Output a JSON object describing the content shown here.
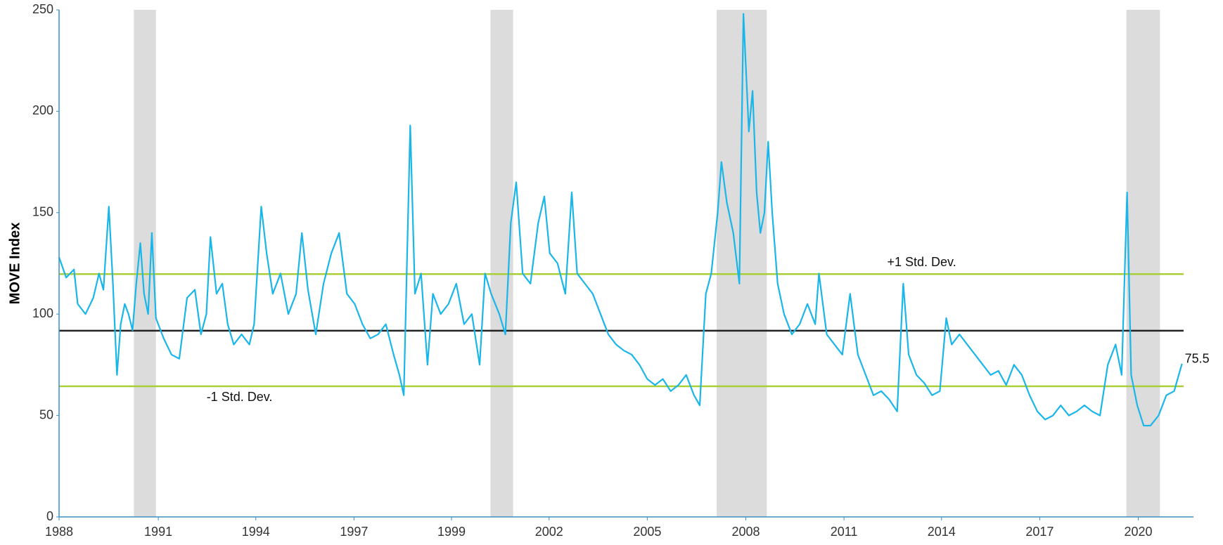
{
  "chart_data": {
    "type": "line",
    "y_label": "MOVE Index",
    "color": "#1ab6ea",
    "x": [
      1988.0,
      1988.21,
      1988.44,
      1988.55,
      1988.78,
      1989.01,
      1989.18,
      1989.31,
      1989.47,
      1989.59,
      1989.71,
      1989.82,
      1989.94,
      1990.05,
      1990.17,
      1990.28,
      1990.4,
      1990.51,
      1990.63,
      1990.74,
      1990.86,
      1991.09,
      1991.32,
      1991.55,
      1991.78,
      1992.01,
      1992.19,
      1992.35,
      1992.47,
      1992.65,
      1992.82,
      1992.98,
      1993.16,
      1993.39,
      1993.62,
      1993.76,
      1993.97,
      1994.13,
      1994.31,
      1994.54,
      1994.77,
      1995.0,
      1995.17,
      1995.35,
      1995.58,
      1995.81,
      1996.04,
      1996.27,
      1996.5,
      1996.73,
      1996.96,
      1997.19,
      1997.42,
      1997.65,
      1997.88,
      1998.05,
      1998.18,
      1998.37,
      1998.51,
      1998.69,
      1998.88,
      1999.04,
      1999.27,
      1999.5,
      1999.73,
      1999.96,
      2000.19,
      2000.42,
      2000.58,
      2000.76,
      2001.0,
      2001.18,
      2001.34,
      2001.5,
      2001.69,
      2001.92,
      2002.15,
      2002.33,
      2002.49,
      2002.72,
      2002.95,
      2003.14,
      2003.3,
      2003.53,
      2003.76,
      2003.99,
      2004.22,
      2004.45,
      2004.68,
      2004.91,
      2005.14,
      2005.37,
      2005.6,
      2005.83,
      2006.06,
      2006.29,
      2006.52,
      2006.75,
      2006.92,
      2007.1,
      2007.26,
      2007.45,
      2007.56,
      2007.72,
      2007.91,
      2008.09,
      2008.21,
      2008.37,
      2008.48,
      2008.6,
      2008.71,
      2008.83,
      2008.94,
      2009.06,
      2009.22,
      2009.41,
      2009.64,
      2009.87,
      2010.1,
      2010.33,
      2010.44,
      2010.67,
      2010.9,
      2011.13,
      2011.36,
      2011.59,
      2011.82,
      2012.05,
      2012.28,
      2012.51,
      2012.75,
      2012.93,
      2013.09,
      2013.32,
      2013.55,
      2013.78,
      2014.01,
      2014.2,
      2014.36,
      2014.59,
      2014.82,
      2015.05,
      2015.28,
      2015.51,
      2015.74,
      2015.97,
      2016.2,
      2016.43,
      2016.66,
      2016.89,
      2017.12,
      2017.35,
      2017.58,
      2017.82,
      2018.05,
      2018.28,
      2018.51,
      2018.74,
      2018.97,
      2019.2,
      2019.38,
      2019.54,
      2019.66,
      2019.84,
      2020.03,
      2020.23,
      2020.47,
      2020.7,
      2020.93,
      2021.16
    ],
    "values": [
      128,
      118,
      122,
      105,
      100,
      108,
      120,
      112,
      153,
      115,
      70,
      95,
      105,
      100,
      92,
      115,
      135,
      110,
      100,
      140,
      98,
      88,
      80,
      78,
      108,
      112,
      90,
      100,
      138,
      110,
      115,
      95,
      85,
      90,
      85,
      95,
      153,
      130,
      110,
      120,
      100,
      110,
      140,
      112,
      90,
      115,
      130,
      140,
      110,
      105,
      95,
      88,
      90,
      95,
      80,
      70,
      60,
      193,
      110,
      120,
      75,
      110,
      100,
      105,
      115,
      95,
      100,
      75,
      120,
      110,
      100,
      90,
      145,
      165,
      120,
      115,
      145,
      158,
      130,
      125,
      110,
      160,
      120,
      115,
      110,
      100,
      90,
      85,
      82,
      80,
      75,
      68,
      65,
      68,
      62,
      65,
      70,
      60,
      55,
      110,
      120,
      150,
      175,
      155,
      140,
      115,
      248,
      190,
      210,
      160,
      140,
      150,
      185,
      150,
      115,
      100,
      90,
      95,
      105,
      95,
      120,
      90,
      85,
      80,
      110,
      80,
      70,
      60,
      62,
      58,
      52,
      115,
      80,
      70,
      66,
      60,
      62,
      98,
      85,
      90,
      85,
      80,
      75,
      70,
      72,
      65,
      75,
      70,
      60,
      52,
      48,
      50,
      55,
      50,
      52,
      55,
      52,
      50,
      75,
      85,
      70,
      160,
      70,
      55,
      45,
      45,
      50,
      60,
      62,
      75.5
    ],
    "xlim": [
      1988,
      2021.5
    ],
    "xticks": [
      {
        "value": 1988,
        "label": "1988"
      },
      {
        "value": 1990.93,
        "label": "1991"
      },
      {
        "value": 1993.81,
        "label": "1994"
      },
      {
        "value": 1996.71,
        "label": "1997"
      },
      {
        "value": 1999.59,
        "label": "1999"
      },
      {
        "value": 2002.47,
        "label": "2002"
      },
      {
        "value": 2005.37,
        "label": "2005"
      },
      {
        "value": 2008.28,
        "label": "2008"
      },
      {
        "value": 2011.18,
        "label": "2011"
      },
      {
        "value": 2014.06,
        "label": "2014"
      },
      {
        "value": 2016.96,
        "label": "2017"
      },
      {
        "value": 2019.87,
        "label": "2020"
      }
    ],
    "ylim": [
      0,
      250
    ],
    "yticks": [
      0,
      50,
      100,
      150,
      200,
      250
    ],
    "grid": false,
    "shaded_ranges": [
      [
        1990.21,
        1990.86
      ],
      [
        2000.74,
        2001.41
      ],
      [
        2007.42,
        2008.9
      ],
      [
        2019.52,
        2020.51
      ]
    ],
    "shade_color": "#dcdcdc",
    "reference_lines": [
      {
        "value": 119.7,
        "label": "+1 Std. Dev.",
        "color": "#a8cf38"
      },
      {
        "value": 91.8,
        "color": "#222222"
      },
      {
        "value": 64.4,
        "label": "-1 Std. Dev.",
        "color": "#a8cf38"
      }
    ]
  }
}
